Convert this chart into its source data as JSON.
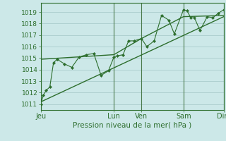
{
  "xlabel": "Pression niveau de la mer( hPa )",
  "bg_color": "#cce8e8",
  "line_color": "#2d6e2d",
  "grid_color": "#aacccc",
  "vline_color": "#4a7a4a",
  "ylim": [
    1010.5,
    1019.8
  ],
  "yticks": [
    1011,
    1012,
    1013,
    1014,
    1015,
    1016,
    1017,
    1018,
    1019
  ],
  "xtick_labels": [
    "Jeu",
    "Lun",
    "Ven",
    "Sam",
    "Dim"
  ],
  "xtick_positions": [
    0,
    40,
    55,
    78,
    100
  ],
  "vline_positions": [
    0,
    40,
    55,
    78,
    100
  ],
  "data_x": [
    0,
    1.5,
    3,
    5,
    7,
    9,
    13,
    17,
    21,
    25,
    29,
    33,
    37,
    40,
    42,
    45,
    48,
    51,
    55,
    58,
    62,
    66,
    70,
    73,
    78,
    80,
    82,
    84,
    87,
    91,
    94,
    97,
    100
  ],
  "data_y": [
    1011.0,
    1011.8,
    1012.2,
    1012.5,
    1014.6,
    1014.9,
    1014.5,
    1014.2,
    1015.1,
    1015.3,
    1015.4,
    1013.5,
    1013.9,
    1015.1,
    1015.2,
    1015.3,
    1016.5,
    1016.5,
    1016.7,
    1016.0,
    1016.5,
    1018.7,
    1018.3,
    1017.1,
    1019.2,
    1019.1,
    1018.5,
    1018.5,
    1017.4,
    1018.6,
    1018.5,
    1018.9,
    1019.2
  ],
  "trend_x": [
    0,
    100
  ],
  "trend_y": [
    1011.2,
    1018.6
  ],
  "trend2_x": [
    0,
    40,
    55,
    78,
    100
  ],
  "trend2_y": [
    1014.9,
    1015.3,
    1016.7,
    1018.6,
    1018.7
  ],
  "xlabel_fontsize": 7.5,
  "ytick_fontsize": 6.5,
  "xtick_fontsize": 7.0
}
